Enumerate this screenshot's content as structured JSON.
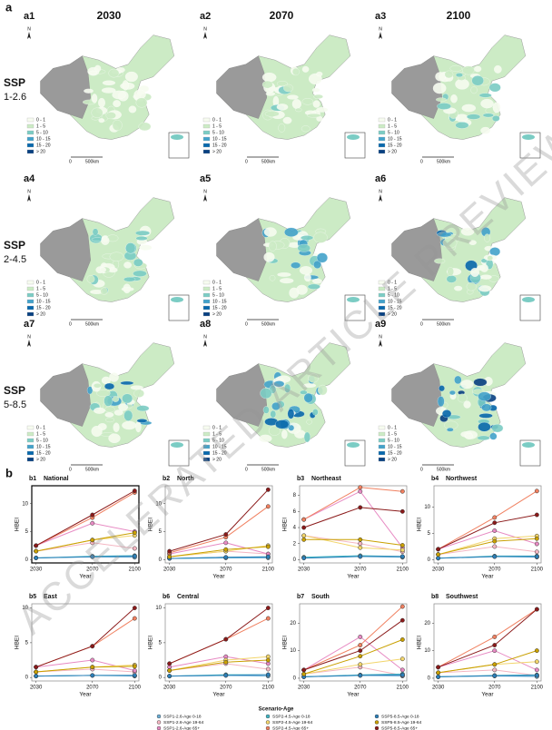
{
  "panel_a": {
    "label": "a",
    "columns": [
      "2030",
      "2070",
      "2100"
    ],
    "rows": [
      {
        "line1": "SSP",
        "line2": "1-2.6"
      },
      {
        "line1": "SSP",
        "line2": "2-4.5"
      },
      {
        "line1": "SSP",
        "line2": "5-8.5"
      }
    ],
    "maps": [
      "a1",
      "a2",
      "a3",
      "a4",
      "a5",
      "a6",
      "a7",
      "a8",
      "a9"
    ],
    "legend": {
      "labels": [
        "0 - 1",
        "1 - 5",
        "5 - 10",
        "10 - 15",
        "15 - 20",
        "> 20"
      ],
      "colors": [
        "#f7fcf0",
        "#ccebc5",
        "#7bccc4",
        "#43a2ca",
        "#0868ac",
        "#084081"
      ]
    },
    "scale": {
      "zero": "0",
      "distance": "500km"
    },
    "north": "N"
  },
  "panel_b_label": "b",
  "chart_data": [
    {
      "type": "line",
      "label": "b1",
      "title": "National",
      "xlabel": "Year",
      "ylabel": "HBEI",
      "x": [
        2030,
        2070,
        2100
      ],
      "xlim": [
        2027,
        2103
      ],
      "xticks": [
        2030,
        2070,
        2100
      ],
      "ylim": [
        -0.6,
        13.2
      ],
      "yticks": [
        0,
        5,
        10
      ],
      "series": [
        {
          "values": [
            0.3,
            0.5,
            0.4
          ]
        },
        {
          "values": [
            1.5,
            3,
            2
          ]
        },
        {
          "values": [
            2.5,
            6.5,
            5
          ]
        },
        {
          "values": [
            0.3,
            0.6,
            0.7
          ]
        },
        {
          "values": [
            1.5,
            3.5,
            4.3
          ]
        },
        {
          "values": [
            2.5,
            7.5,
            12
          ]
        },
        {
          "values": [
            0.3,
            0.5,
            0.6
          ]
        },
        {
          "values": [
            1.5,
            3.5,
            4.8
          ]
        },
        {
          "values": [
            2.5,
            8,
            12.3
          ]
        }
      ]
    },
    {
      "type": "line",
      "label": "b2",
      "title": "North",
      "xlabel": "Year",
      "ylabel": "HBEI",
      "x": [
        2030,
        2070,
        2100
      ],
      "xlim": [
        2027,
        2103
      ],
      "xticks": [
        2030,
        2070,
        2100
      ],
      "ylim": [
        -0.6,
        13.2
      ],
      "yticks": [
        0,
        5,
        10
      ],
      "series": [
        {
          "values": [
            0.2,
            0.3,
            0.3
          ]
        },
        {
          "values": [
            0.5,
            1.5,
            1
          ]
        },
        {
          "values": [
            1,
            3,
            1
          ]
        },
        {
          "values": [
            0.2,
            0.4,
            0.5
          ]
        },
        {
          "values": [
            0.5,
            1.5,
            2.5
          ]
        },
        {
          "values": [
            1.2,
            4,
            9.5
          ]
        },
        {
          "values": [
            0.2,
            0.4,
            0.5
          ]
        },
        {
          "values": [
            0.5,
            1.8,
            2.3
          ]
        },
        {
          "values": [
            1.5,
            4.5,
            12.5
          ]
        }
      ]
    },
    {
      "type": "line",
      "label": "b3",
      "title": "Northeast",
      "xlabel": "Year",
      "ylabel": "HBEI",
      "x": [
        2030,
        2070,
        2100
      ],
      "xlim": [
        2027,
        2103
      ],
      "xticks": [
        2030,
        2070,
        2100
      ],
      "ylim": [
        -0.4,
        9.2
      ],
      "yticks": [
        0,
        2,
        4,
        6,
        8
      ],
      "series": [
        {
          "values": [
            0.3,
            0.4,
            0.3
          ]
        },
        {
          "values": [
            3,
            2,
            1
          ]
        },
        {
          "values": [
            5,
            8.5,
            1.5
          ]
        },
        {
          "values": [
            0.3,
            0.5,
            0.4
          ]
        },
        {
          "values": [
            3,
            1.5,
            1.2
          ]
        },
        {
          "values": [
            5,
            9,
            8.5
          ]
        },
        {
          "values": [
            0.2,
            0.4,
            0.4
          ]
        },
        {
          "values": [
            2.5,
            2.5,
            1.8
          ]
        },
        {
          "values": [
            4,
            6.5,
            6
          ]
        }
      ]
    },
    {
      "type": "line",
      "label": "b4",
      "title": "Northwest",
      "xlabel": "Year",
      "ylabel": "HBEI",
      "x": [
        2030,
        2070,
        2100
      ],
      "xlim": [
        2027,
        2103
      ],
      "xticks": [
        2030,
        2070,
        2100
      ],
      "ylim": [
        -0.6,
        14
      ],
      "yticks": [
        0,
        5,
        10
      ],
      "series": [
        {
          "values": [
            0.3,
            0.6,
            0.5
          ]
        },
        {
          "values": [
            1,
            2.5,
            1.5
          ]
        },
        {
          "values": [
            2,
            5.5,
            3
          ]
        },
        {
          "values": [
            0.3,
            0.7,
            0.7
          ]
        },
        {
          "values": [
            1,
            4,
            4.5
          ]
        },
        {
          "values": [
            2,
            8,
            13
          ]
        },
        {
          "values": [
            0.3,
            0.6,
            0.6
          ]
        },
        {
          "values": [
            1,
            3.5,
            4
          ]
        },
        {
          "values": [
            2,
            7,
            8.5
          ]
        }
      ]
    },
    {
      "type": "line",
      "label": "b5",
      "title": "East",
      "xlabel": "Year",
      "ylabel": "HBEI",
      "x": [
        2030,
        2070,
        2100
      ],
      "xlim": [
        2027,
        2103
      ],
      "xticks": [
        2030,
        2070,
        2100
      ],
      "ylim": [
        -0.5,
        10.6
      ],
      "yticks": [
        0,
        5,
        10
      ],
      "series": [
        {
          "values": [
            0.2,
            0.3,
            0.2
          ]
        },
        {
          "values": [
            0.8,
            1.2,
            0.8
          ]
        },
        {
          "values": [
            1.5,
            2.5,
            1
          ]
        },
        {
          "values": [
            0.2,
            0.3,
            0.3
          ]
        },
        {
          "values": [
            0.8,
            1.5,
            1.8
          ]
        },
        {
          "values": [
            1.5,
            4.5,
            8.5
          ]
        },
        {
          "values": [
            0.2,
            0.3,
            0.3
          ]
        },
        {
          "values": [
            0.8,
            1.5,
            1.6
          ]
        },
        {
          "values": [
            1.5,
            4.5,
            10
          ]
        }
      ]
    },
    {
      "type": "line",
      "label": "b6",
      "title": "Central",
      "xlabel": "Year",
      "ylabel": "HBEI",
      "x": [
        2030,
        2070,
        2100
      ],
      "xlim": [
        2027,
        2103
      ],
      "xticks": [
        2030,
        2070,
        2100
      ],
      "ylim": [
        -0.5,
        10.6
      ],
      "yticks": [
        0,
        5,
        10
      ],
      "series": [
        {
          "values": [
            0.2,
            0.3,
            0.2
          ]
        },
        {
          "values": [
            1,
            2,
            1.2
          ]
        },
        {
          "values": [
            1.5,
            3,
            2
          ]
        },
        {
          "values": [
            0.2,
            0.4,
            0.4
          ]
        },
        {
          "values": [
            1,
            2.5,
            3
          ]
        },
        {
          "values": [
            2,
            5.5,
            8.5
          ]
        },
        {
          "values": [
            0.2,
            0.3,
            0.4
          ]
        },
        {
          "values": [
            1,
            2.2,
            2.5
          ]
        },
        {
          "values": [
            2,
            5.5,
            10
          ]
        }
      ]
    },
    {
      "type": "line",
      "label": "b7",
      "title": "South",
      "xlabel": "Year",
      "ylabel": "HBEI",
      "x": [
        2030,
        2070,
        2100
      ],
      "xlim": [
        2027,
        2103
      ],
      "xticks": [
        2030,
        2070,
        2100
      ],
      "ylim": [
        -1,
        27
      ],
      "yticks": [
        0,
        10,
        20
      ],
      "series": [
        {
          "values": [
            0.5,
            1,
            0.8
          ]
        },
        {
          "values": [
            1.5,
            4,
            1
          ]
        },
        {
          "values": [
            3,
            15,
            3
          ]
        },
        {
          "values": [
            0.5,
            1.2,
            1.5
          ]
        },
        {
          "values": [
            1.5,
            5,
            7
          ]
        },
        {
          "values": [
            3,
            12,
            26
          ]
        },
        {
          "values": [
            0.5,
            1,
            1.2
          ]
        },
        {
          "values": [
            1.5,
            8,
            14
          ]
        },
        {
          "values": [
            3,
            10,
            21
          ]
        }
      ]
    },
    {
      "type": "line",
      "label": "b8",
      "title": "Southwest",
      "xlabel": "Year",
      "ylabel": "HBEI",
      "x": [
        2030,
        2070,
        2100
      ],
      "xlim": [
        2027,
        2103
      ],
      "xticks": [
        2030,
        2070,
        2100
      ],
      "ylim": [
        -1,
        27
      ],
      "yticks": [
        0,
        10,
        20
      ],
      "series": [
        {
          "values": [
            0.5,
            0.8,
            0.6
          ]
        },
        {
          "values": [
            2,
            3,
            1
          ]
        },
        {
          "values": [
            4,
            10,
            3
          ]
        },
        {
          "values": [
            0.5,
            1,
            1.2
          ]
        },
        {
          "values": [
            2,
            5,
            6
          ]
        },
        {
          "values": [
            4,
            15,
            25
          ]
        },
        {
          "values": [
            0.5,
            0.9,
            1
          ]
        },
        {
          "values": [
            2,
            5,
            10
          ]
        },
        {
          "values": [
            4,
            12,
            25
          ]
        }
      ]
    }
  ],
  "legend": {
    "title": "Scenario-Age",
    "entries": [
      {
        "name": "SSP1-2.6-Age 0-18",
        "color": "#6baed6"
      },
      {
        "name": "SSP1-2.6-Age 19-64",
        "color": "#f4b6c2"
      },
      {
        "name": "SSP1-2.6-Age 65+",
        "color": "#e78ac3"
      },
      {
        "name": "SSP2-4.5-Age 0-18",
        "color": "#41b6c4"
      },
      {
        "name": "SSP2-4.5-Age 19-64",
        "color": "#f2d56b"
      },
      {
        "name": "SSP2-4.5-Age 65+",
        "color": "#f08060"
      },
      {
        "name": "SSP5-8.5-Age 0-18",
        "color": "#2c7fb8"
      },
      {
        "name": "SSP5-8.5-Age 19-64",
        "color": "#c9a000"
      },
      {
        "name": "SSP5-8.5-Age 65+",
        "color": "#8b1a1a"
      }
    ]
  },
  "watermark": "ACCELERATED ARTICLE PREVIEW"
}
